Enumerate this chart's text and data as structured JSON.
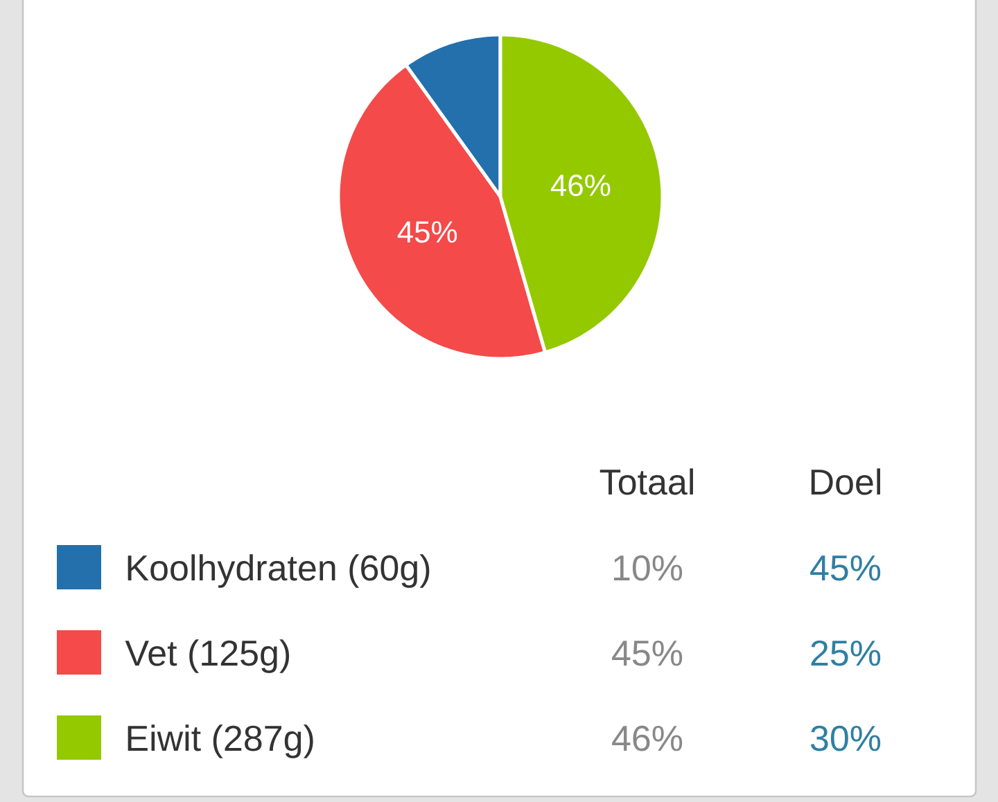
{
  "chart_data": [
    {
      "type": "pie",
      "categories": [
        "Koolhydraten (60g)",
        "Vet (125g)",
        "Eiwit (287g)"
      ],
      "colors": [
        "#2370ad",
        "#f44a4a",
        "#94c900"
      ],
      "series": [
        {
          "name": "Totaal",
          "values": [
            10,
            45,
            46
          ],
          "value_labels": [
            "10%",
            "45%",
            "46%"
          ]
        }
      ],
      "legend": "bottom"
    },
    {
      "type": "other",
      "title": "Doel",
      "annotations": [
        "45%",
        "25%",
        "30%"
      ]
    }
  ]
}
